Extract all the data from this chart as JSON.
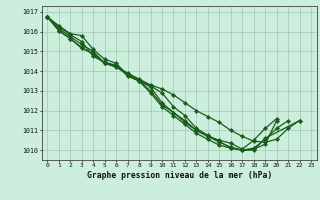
{
  "title": "Graphe pression niveau de la mer (hPa)",
  "background_color": "#cceedd",
  "plot_bg_color": "#cceedd",
  "grid_color": "#aaccbb",
  "line_color": "#1a5c1a",
  "marker_color": "#1a5c1a",
  "xlim": [
    -0.5,
    23.5
  ],
  "ylim": [
    1009.5,
    1017.3
  ],
  "xticks": [
    0,
    1,
    2,
    3,
    4,
    5,
    6,
    7,
    8,
    9,
    10,
    11,
    12,
    13,
    14,
    15,
    16,
    17,
    18,
    19,
    20,
    21,
    22,
    23
  ],
  "yticks": [
    1010,
    1011,
    1012,
    1013,
    1014,
    1015,
    1016,
    1017
  ],
  "series": [
    [
      1016.75,
      1016.3,
      1015.9,
      1015.8,
      1015.1,
      1014.6,
      1014.4,
      1013.8,
      1013.5,
      1013.0,
      1012.3,
      1011.9,
      1011.4,
      1011.0,
      1010.7,
      1010.5,
      1010.35,
      1010.05,
      1010.5,
      1011.1,
      1011.6,
      null,
      null,
      null
    ],
    [
      1016.75,
      1016.25,
      1015.85,
      1015.5,
      1014.75,
      1014.45,
      1014.3,
      1013.75,
      1013.5,
      1012.9,
      1012.2,
      1011.75,
      1011.3,
      1010.85,
      1010.55,
      1010.25,
      1010.1,
      1010.0,
      1010.05,
      1010.3,
      1011.5,
      null,
      null,
      null
    ],
    [
      1016.75,
      1016.15,
      1015.75,
      1015.35,
      1015.0,
      1014.4,
      1014.2,
      1013.85,
      1013.5,
      1013.2,
      1012.4,
      1011.9,
      1011.5,
      1011.0,
      1010.7,
      1010.4,
      1010.15,
      1010.0,
      1010.1,
      1010.55,
      1011.1,
      1011.5,
      null,
      null
    ],
    [
      1016.75,
      1016.05,
      1015.65,
      1015.15,
      1014.9,
      1014.4,
      1014.25,
      1013.85,
      1013.55,
      1013.25,
      1012.9,
      1012.2,
      1011.75,
      1011.1,
      1010.75,
      1010.45,
      1010.1,
      1010.0,
      1010.0,
      1010.6,
      null,
      null,
      1011.5,
      null
    ],
    [
      1016.75,
      1016.05,
      1015.65,
      1015.2,
      1014.85,
      1014.4,
      1014.25,
      1013.9,
      1013.6,
      1013.3,
      1013.1,
      1012.8,
      1012.4,
      1012.0,
      1011.7,
      1011.4,
      1011.0,
      1010.7,
      1010.45,
      1010.4,
      1010.55,
      1011.1,
      1011.5,
      null
    ]
  ]
}
